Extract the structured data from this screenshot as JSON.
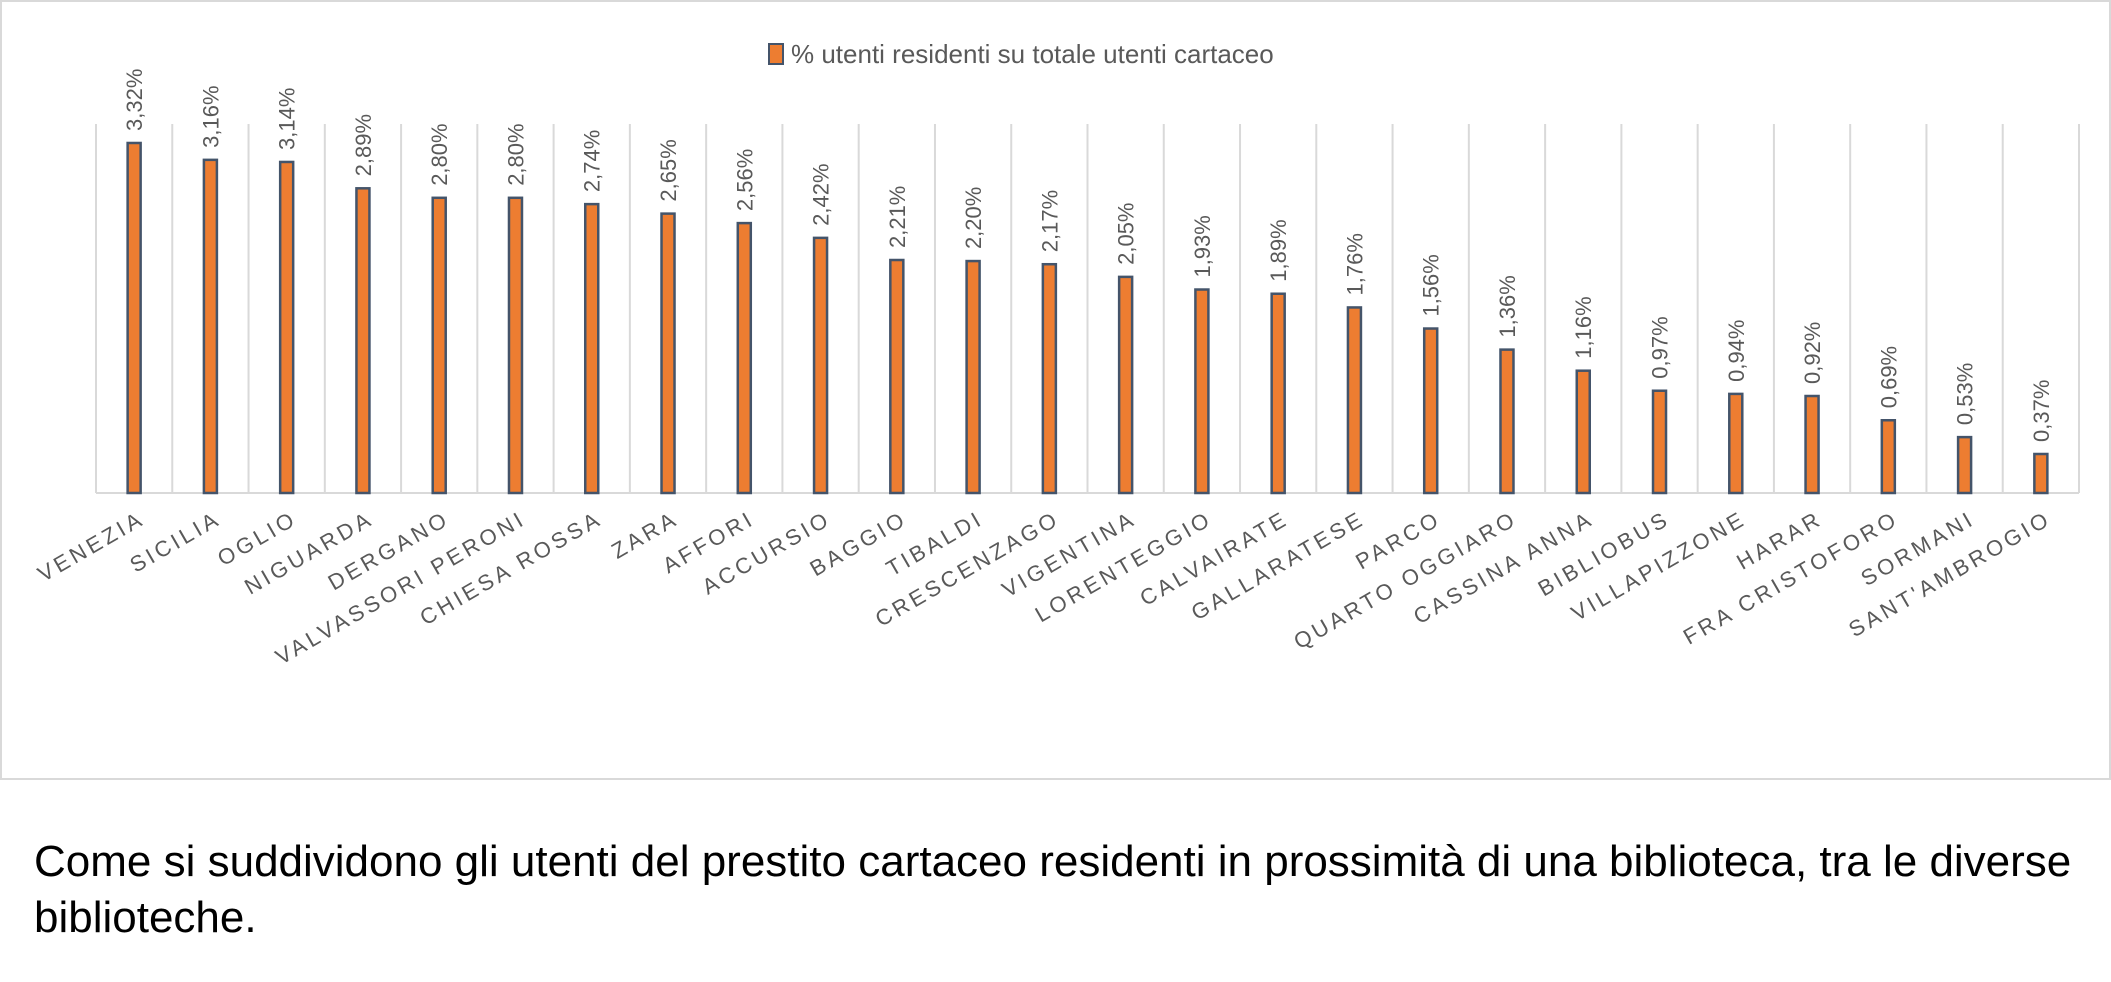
{
  "chart_data": {
    "type": "bar",
    "legend": {
      "label": "% utenti residenti su totale utenti cartaceo",
      "position": "top-center"
    },
    "categories": [
      "VENEZIA",
      "SICILIA",
      "OGLIO",
      "NIGUARDA",
      "DERGANO",
      "VALVASSORI PERONI",
      "CHIESA ROSSA",
      "ZARA",
      "AFFORI",
      "ACCURSIO",
      "BAGGIO",
      "TIBALDI",
      "CRESCENZAGO",
      "VIGENTINA",
      "LORENTEGGIO",
      "CALVAIRATE",
      "GALLARATESE",
      "PARCO",
      "QUARTO OGGIARO",
      "CASSINA ANNA",
      "BIBLIOBUS",
      "VILLAPIZZONE",
      "HARAR",
      "FRA CRISTOFORO",
      "SORMANI",
      "SANT'AMBROGIO"
    ],
    "values": [
      3.32,
      3.16,
      3.14,
      2.89,
      2.8,
      2.8,
      2.74,
      2.65,
      2.56,
      2.42,
      2.21,
      2.2,
      2.17,
      2.05,
      1.93,
      1.89,
      1.76,
      1.56,
      1.36,
      1.16,
      0.97,
      0.94,
      0.92,
      0.69,
      0.53,
      0.37
    ],
    "data_labels": [
      "3,32%",
      "3,16%",
      "3,14%",
      "2,89%",
      "2,80%",
      "2,80%",
      "2,74%",
      "2,65%",
      "2,56%",
      "2,42%",
      "2,21%",
      "2,20%",
      "2,17%",
      "2,05%",
      "1,93%",
      "1,89%",
      "1,76%",
      "1,56%",
      "1,36%",
      "1,16%",
      "0,97%",
      "0,94%",
      "0,92%",
      "0,69%",
      "0,53%",
      "0,37%"
    ],
    "ylim": [
      0,
      3.5
    ],
    "vertical_gridlines": true,
    "colors": {
      "bar_fill": "#ed7d31",
      "bar_stroke": "#44546a",
      "grid": "#d9d9d9",
      "label": "#595959"
    }
  },
  "caption": "Come si suddividono gli utenti del prestito cartaceo residenti in prossimità di una biblioteca, tra le diverse biblioteche."
}
